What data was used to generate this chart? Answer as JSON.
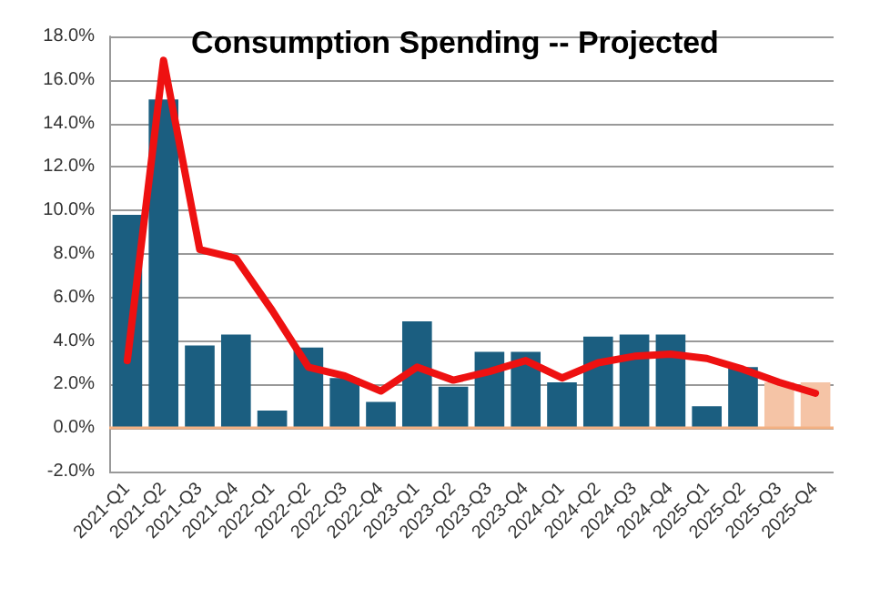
{
  "chart_data": {
    "type": "bar",
    "title": "Consumption Spending -- Projected",
    "categories": [
      "2021-Q1",
      "2021-Q2",
      "2021-Q3",
      "2021-Q4",
      "2022-Q1",
      "2022-Q2",
      "2022-Q3",
      "2022-Q4",
      "2023-Q1",
      "2023-Q2",
      "2023-Q3",
      "2023-Q4",
      "2024-Q1",
      "2024-Q2",
      "2024-Q3",
      "2024-Q4",
      "2025-Q1",
      "2025-Q2",
      "2025-Q3",
      "2025-Q4"
    ],
    "series": [
      {
        "colors": [
          "#1b5e80",
          "#1b5e80",
          "#1b5e80",
          "#1b5e80",
          "#1b5e80",
          "#1b5e80",
          "#1b5e80",
          "#1b5e80",
          "#1b5e80",
          "#1b5e80",
          "#1b5e80",
          "#1b5e80",
          "#1b5e80",
          "#1b5e80",
          "#1b5e80",
          "#1b5e80",
          "#1b5e80",
          "#1b5e80",
          "#f5c4a6",
          "#f5c4a6"
        ],
        "values": [
          9.8,
          15.1,
          3.8,
          4.3,
          0.8,
          3.7,
          2.3,
          1.2,
          4.9,
          1.9,
          3.5,
          3.5,
          2.1,
          4.2,
          4.3,
          4.3,
          1.0,
          2.8,
          2.1,
          2.1
        ]
      },
      {
        "type": "line",
        "color": "#ee1111",
        "values": [
          3.1,
          16.9,
          8.2,
          7.8,
          5.4,
          2.8,
          2.4,
          1.7,
          2.8,
          2.2,
          2.6,
          3.1,
          2.3,
          3.0,
          3.3,
          3.4,
          3.2,
          2.7,
          2.1,
          1.6
        ]
      }
    ],
    "ylim": [
      -2,
      18
    ],
    "yticks": [
      {
        "value": -2,
        "label": "-2.0%"
      },
      {
        "value": 0,
        "label": "0.0%"
      },
      {
        "value": 2,
        "label": "2.0%"
      },
      {
        "value": 4,
        "label": "4.0%"
      },
      {
        "value": 6,
        "label": "6.0%"
      },
      {
        "value": 8,
        "label": "8.0%"
      },
      {
        "value": 10,
        "label": "10.0%"
      },
      {
        "value": 12,
        "label": "12.0%"
      },
      {
        "value": 14,
        "label": "14.0%"
      },
      {
        "value": 16,
        "label": "16.0%"
      },
      {
        "value": 18,
        "label": "18.0%"
      }
    ],
    "ref_lines": [
      {
        "axis": "y",
        "value": 0,
        "color": "#f4b183"
      }
    ],
    "grid": "y",
    "marker": "none",
    "line_style": "solid"
  }
}
